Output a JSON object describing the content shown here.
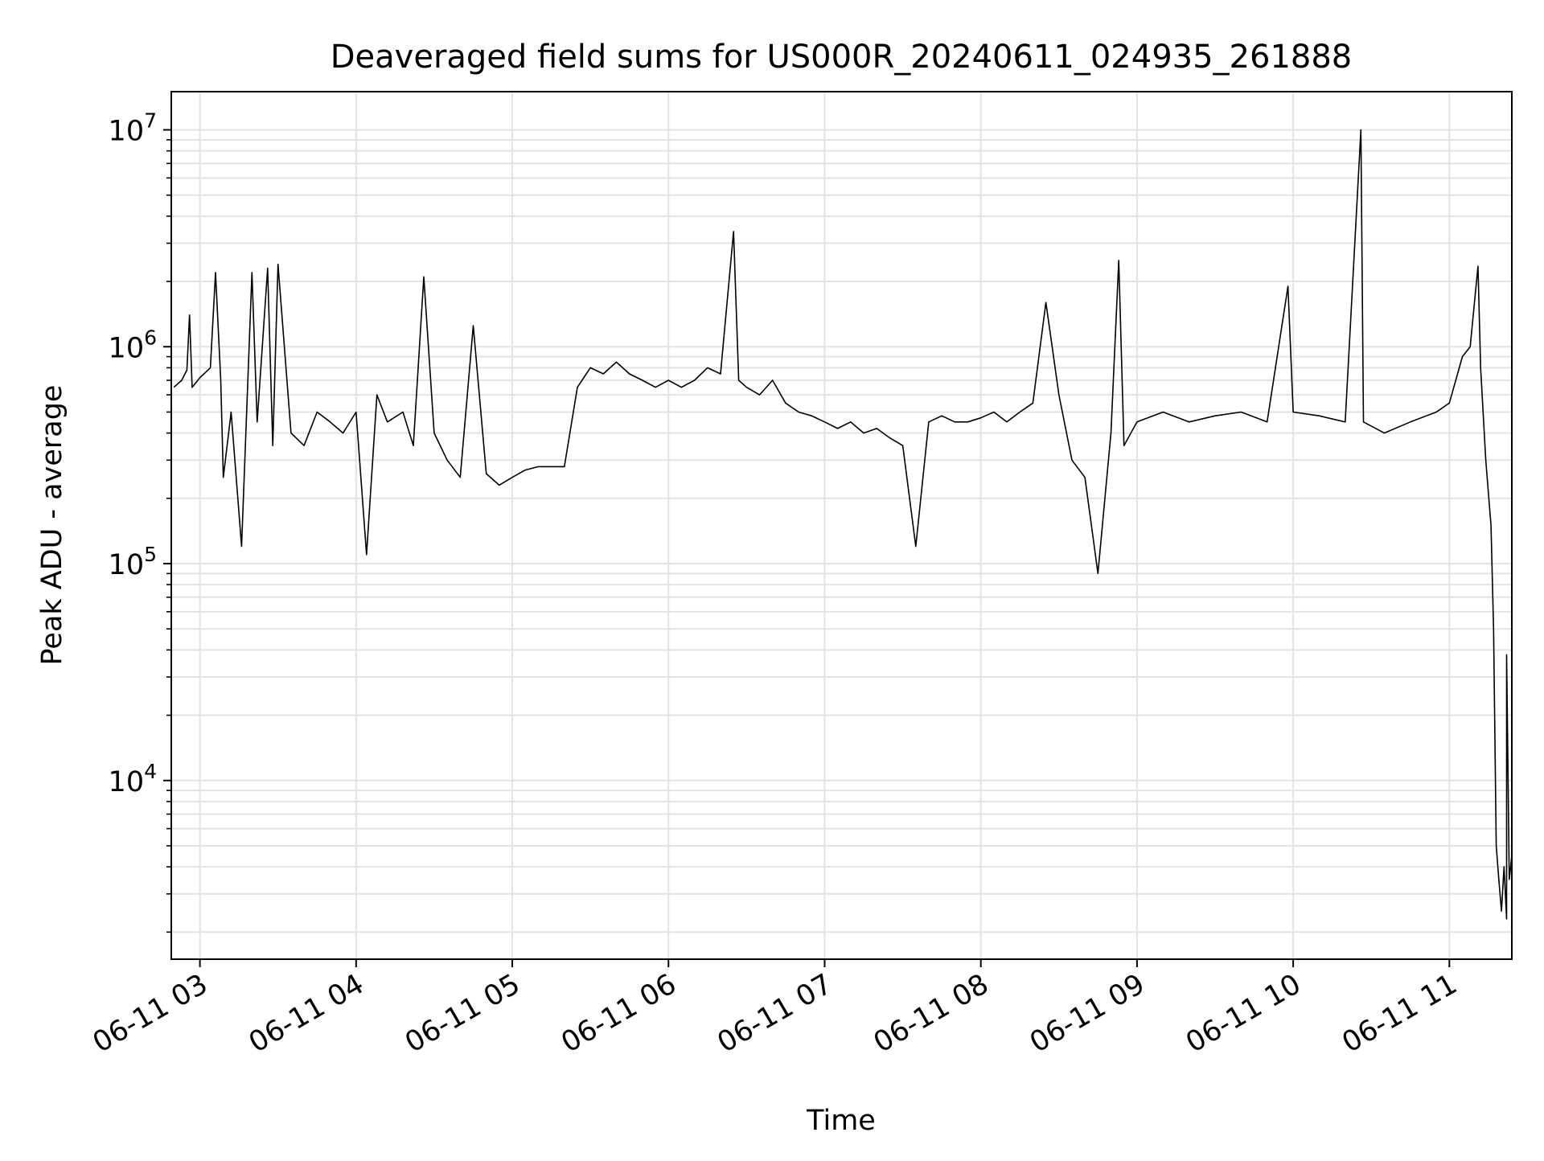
{
  "chart_data": {
    "type": "line",
    "title": "Deaveraged field sums for US000R_20240611_024935_261888",
    "xlabel": "Time",
    "ylabel": "Peak ADU - average",
    "yscale": "log",
    "ylim": [
      1500,
      15000000
    ],
    "xlim": [
      "06-11 02:49",
      "06-11 11:24"
    ],
    "grid": true,
    "grid_which": "both",
    "line_color": "#000000",
    "x_ticks": [
      "06-11 03",
      "06-11 04",
      "06-11 05",
      "06-11 06",
      "06-11 07",
      "06-11 08",
      "06-11 09",
      "06-11 10",
      "06-11 11"
    ],
    "y_ticks": [
      {
        "base": "10",
        "exp": "4"
      },
      {
        "base": "10",
        "exp": "5"
      },
      {
        "base": "10",
        "exp": "6"
      },
      {
        "base": "10",
        "exp": "7"
      }
    ],
    "series": [
      {
        "color": "#000000",
        "points": [
          [
            "06-11 02:50",
            650000
          ],
          [
            "06-11 02:53",
            700000
          ],
          [
            "06-11 02:55",
            780000
          ],
          [
            "06-11 02:56",
            1400000
          ],
          [
            "06-11 02:57",
            650000
          ],
          [
            "06-11 03:00",
            720000
          ],
          [
            "06-11 03:04",
            800000
          ],
          [
            "06-11 03:06",
            2200000
          ],
          [
            "06-11 03:08",
            700000
          ],
          [
            "06-11 03:09",
            250000
          ],
          [
            "06-11 03:12",
            500000
          ],
          [
            "06-11 03:16",
            120000
          ],
          [
            "06-11 03:20",
            2200000
          ],
          [
            "06-11 03:22",
            450000
          ],
          [
            "06-11 03:26",
            2300000
          ],
          [
            "06-11 03:28",
            350000
          ],
          [
            "06-11 03:30",
            2400000
          ],
          [
            "06-11 03:35",
            400000
          ],
          [
            "06-11 03:40",
            350000
          ],
          [
            "06-11 03:45",
            500000
          ],
          [
            "06-11 03:50",
            450000
          ],
          [
            "06-11 03:55",
            400000
          ],
          [
            "06-11 04:00",
            500000
          ],
          [
            "06-11 04:04",
            110000
          ],
          [
            "06-11 04:08",
            600000
          ],
          [
            "06-11 04:12",
            450000
          ],
          [
            "06-11 04:18",
            500000
          ],
          [
            "06-11 04:22",
            350000
          ],
          [
            "06-11 04:26",
            2100000
          ],
          [
            "06-11 04:30",
            400000
          ],
          [
            "06-11 04:35",
            300000
          ],
          [
            "06-11 04:40",
            250000
          ],
          [
            "06-11 04:45",
            1250000
          ],
          [
            "06-11 04:50",
            260000
          ],
          [
            "06-11 04:55",
            230000
          ],
          [
            "06-11 05:00",
            250000
          ],
          [
            "06-11 05:05",
            270000
          ],
          [
            "06-11 05:10",
            280000
          ],
          [
            "06-11 05:15",
            280000
          ],
          [
            "06-11 05:20",
            280000
          ],
          [
            "06-11 05:25",
            650000
          ],
          [
            "06-11 05:30",
            800000
          ],
          [
            "06-11 05:35",
            750000
          ],
          [
            "06-11 05:40",
            850000
          ],
          [
            "06-11 05:45",
            750000
          ],
          [
            "06-11 05:50",
            700000
          ],
          [
            "06-11 05:55",
            650000
          ],
          [
            "06-11 06:00",
            700000
          ],
          [
            "06-11 06:05",
            650000
          ],
          [
            "06-11 06:10",
            700000
          ],
          [
            "06-11 06:15",
            800000
          ],
          [
            "06-11 06:20",
            750000
          ],
          [
            "06-11 06:25",
            3400000
          ],
          [
            "06-11 06:27",
            700000
          ],
          [
            "06-11 06:30",
            650000
          ],
          [
            "06-11 06:35",
            600000
          ],
          [
            "06-11 06:40",
            700000
          ],
          [
            "06-11 06:45",
            550000
          ],
          [
            "06-11 06:50",
            500000
          ],
          [
            "06-11 06:55",
            480000
          ],
          [
            "06-11 07:00",
            450000
          ],
          [
            "06-11 07:05",
            420000
          ],
          [
            "06-11 07:10",
            450000
          ],
          [
            "06-11 07:15",
            400000
          ],
          [
            "06-11 07:20",
            420000
          ],
          [
            "06-11 07:25",
            380000
          ],
          [
            "06-11 07:30",
            350000
          ],
          [
            "06-11 07:35",
            120000
          ],
          [
            "06-11 07:40",
            450000
          ],
          [
            "06-11 07:45",
            480000
          ],
          [
            "06-11 07:50",
            450000
          ],
          [
            "06-11 07:55",
            450000
          ],
          [
            "06-11 08:00",
            470000
          ],
          [
            "06-11 08:05",
            500000
          ],
          [
            "06-11 08:10",
            450000
          ],
          [
            "06-11 08:15",
            500000
          ],
          [
            "06-11 08:20",
            550000
          ],
          [
            "06-11 08:25",
            1600000
          ],
          [
            "06-11 08:30",
            600000
          ],
          [
            "06-11 08:35",
            300000
          ],
          [
            "06-11 08:40",
            250000
          ],
          [
            "06-11 08:45",
            90000
          ],
          [
            "06-11 08:50",
            400000
          ],
          [
            "06-11 08:53",
            2500000
          ],
          [
            "06-11 08:55",
            350000
          ],
          [
            "06-11 09:00",
            450000
          ],
          [
            "06-11 09:10",
            500000
          ],
          [
            "06-11 09:20",
            450000
          ],
          [
            "06-11 09:30",
            480000
          ],
          [
            "06-11 09:40",
            500000
          ],
          [
            "06-11 09:50",
            450000
          ],
          [
            "06-11 09:58",
            1900000
          ],
          [
            "06-11 10:00",
            500000
          ],
          [
            "06-11 10:10",
            480000
          ],
          [
            "06-11 10:20",
            450000
          ],
          [
            "06-11 10:26",
            10000000
          ],
          [
            "06-11 10:27",
            450000
          ],
          [
            "06-11 10:35",
            400000
          ],
          [
            "06-11 10:45",
            450000
          ],
          [
            "06-11 10:55",
            500000
          ],
          [
            "06-11 11:00",
            550000
          ],
          [
            "06-11 11:05",
            900000
          ],
          [
            "06-11 11:08",
            1000000
          ],
          [
            "06-11 11:11",
            2350000
          ],
          [
            "06-11 11:12",
            800000
          ],
          [
            "06-11 11:14",
            300000
          ],
          [
            "06-11 11:16",
            150000
          ],
          [
            "06-11 11:17",
            50000
          ],
          [
            "06-11 11:18",
            5000
          ],
          [
            "06-11 11:19",
            3500
          ],
          [
            "06-11 11:20",
            2500
          ],
          [
            "06-11 11:21",
            4000
          ],
          [
            "06-11 11:22",
            2300
          ],
          [
            "06-11 11:22",
            38000
          ],
          [
            "06-11 11:23",
            3500
          ],
          [
            "06-11 11:24",
            4500
          ]
        ]
      }
    ]
  }
}
